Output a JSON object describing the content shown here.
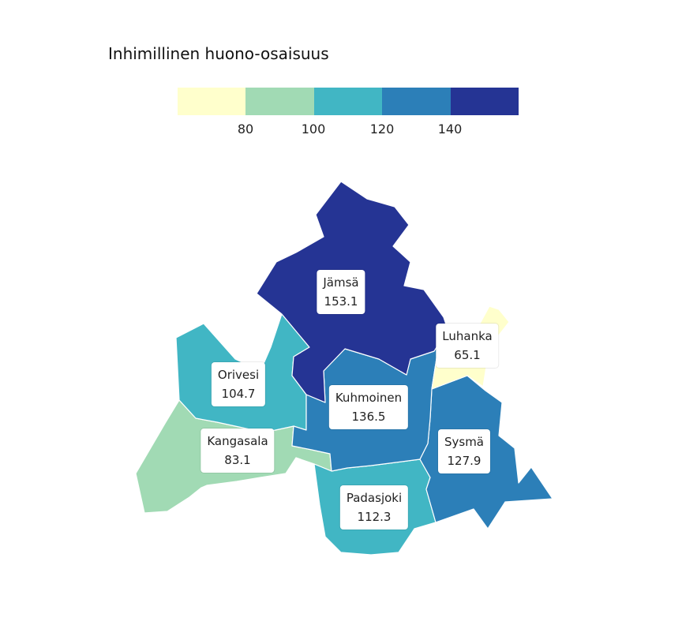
{
  "legend": {
    "title": "Inhimillinen huono-osaisuus",
    "colors": [
      "#ffffcc",
      "#a1dab4",
      "#41b6c4",
      "#2c7fb8",
      "#253494"
    ],
    "ticks": [
      "80",
      "100",
      "120",
      "140"
    ]
  },
  "regions": [
    {
      "key": "jamsa",
      "name": "Jämsä",
      "value": "153.1",
      "color": "#253494"
    },
    {
      "key": "luhanka",
      "name": "Luhanka",
      "value": "65.1",
      "color": "#ffffcc"
    },
    {
      "key": "orivesi",
      "name": "Orivesi",
      "value": "104.7",
      "color": "#41b6c4"
    },
    {
      "key": "kuhmoinen",
      "name": "Kuhmoinen",
      "value": "136.5",
      "color": "#2c7fb8"
    },
    {
      "key": "kangasala",
      "name": "Kangasala",
      "value": "83.1",
      "color": "#a1dab4"
    },
    {
      "key": "sysma",
      "name": "Sysmä",
      "value": "127.9",
      "color": "#2c7fb8"
    },
    {
      "key": "padasjoki",
      "name": "Padasjoki",
      "value": "112.3",
      "color": "#41b6c4"
    }
  ]
}
